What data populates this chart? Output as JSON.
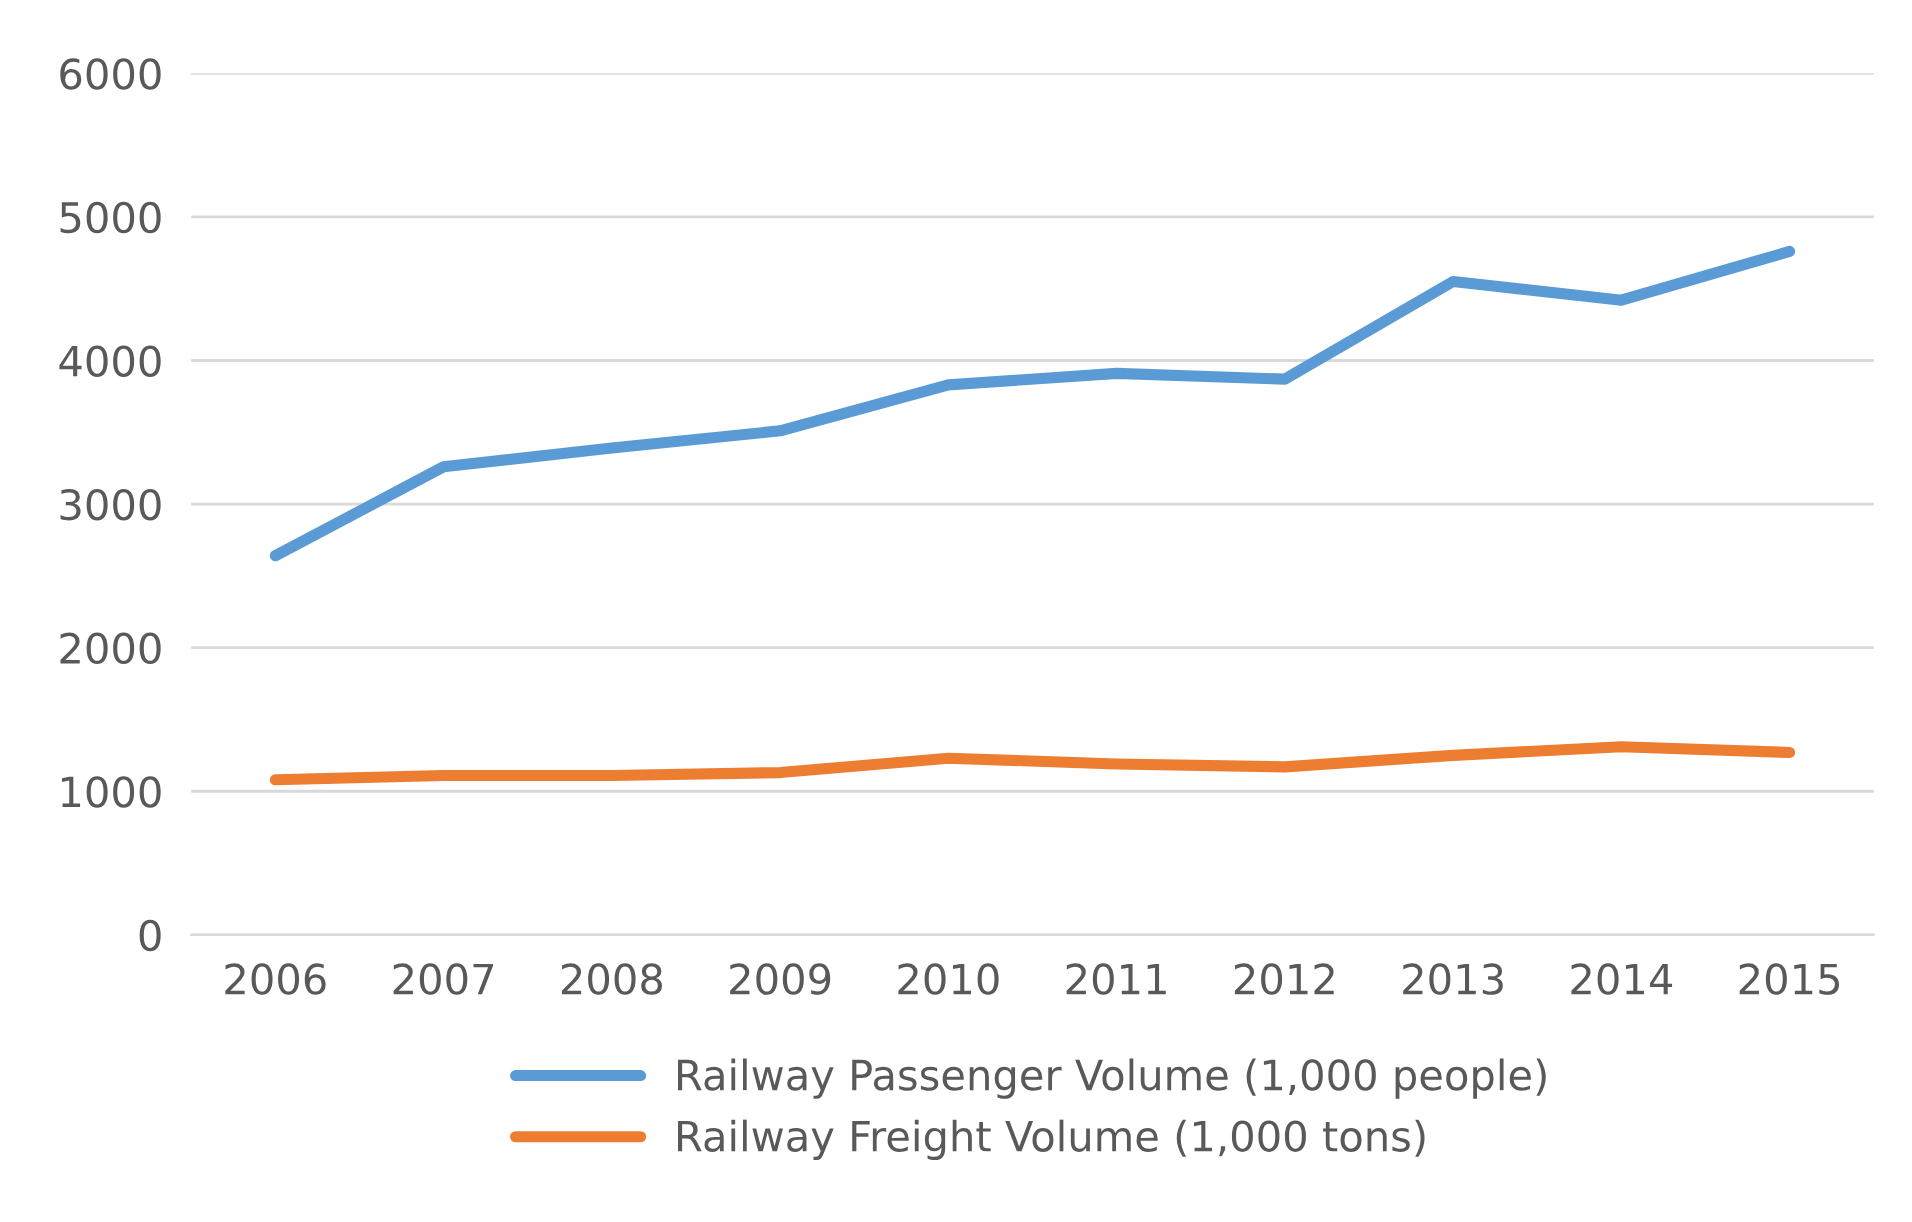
{
  "chart_data": {
    "type": "line",
    "categories": [
      "2006",
      "2007",
      "2008",
      "2009",
      "2010",
      "2011",
      "2012",
      "2013",
      "2014",
      "2015"
    ],
    "series": [
      {
        "name": "Railway Passenger Volume (1,000 people)",
        "color": "#5b9bd5",
        "values": [
          2640,
          3260,
          3390,
          3510,
          3830,
          3910,
          3870,
          4550,
          4420,
          4760
        ]
      },
      {
        "name": "Railway Freight Volume (1,000 tons)",
        "color": "#ed7d31",
        "values": [
          1080,
          1110,
          1110,
          1130,
          1230,
          1190,
          1170,
          1250,
          1310,
          1270
        ]
      }
    ],
    "ylim": [
      0,
      6000
    ],
    "yticks": [
      0,
      1000,
      2000,
      3000,
      4000,
      5000,
      6000
    ],
    "grid": "y",
    "legend": "bottom",
    "marker": "none",
    "line_style": "solid"
  }
}
